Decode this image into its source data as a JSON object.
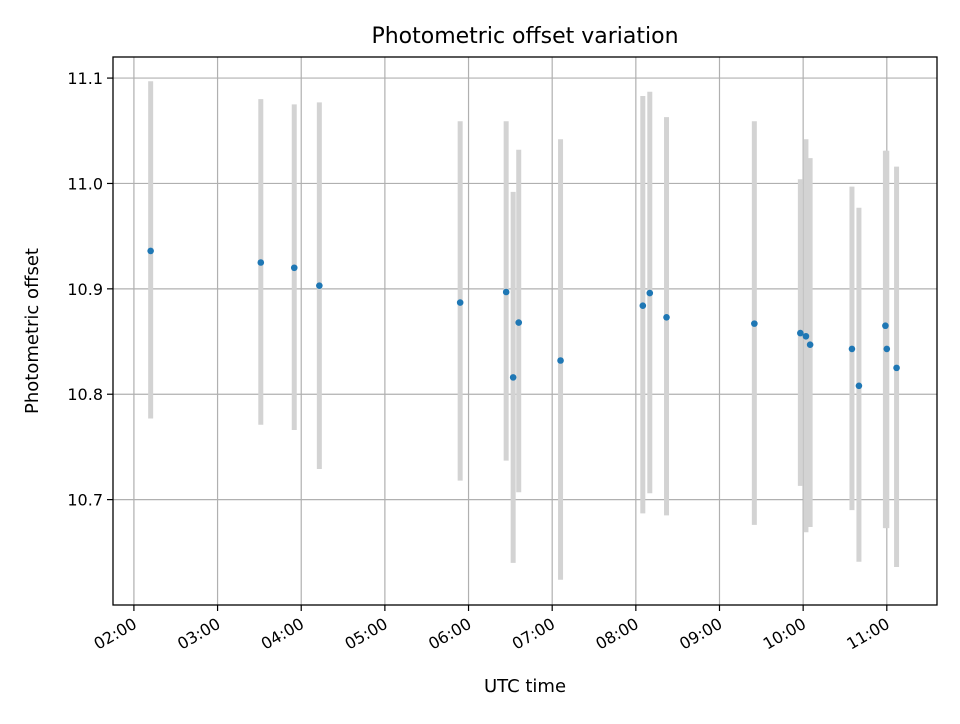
{
  "chart_data": {
    "type": "scatter",
    "title": "Photometric offset variation",
    "xlabel": "UTC time",
    "ylabel": "Photometric offset",
    "x_ticks": [
      "02:00",
      "03:00",
      "04:00",
      "05:00",
      "06:00",
      "07:00",
      "08:00",
      "09:00",
      "10:00",
      "11:00"
    ],
    "y_ticks": [
      "10.7",
      "10.8",
      "10.9",
      "11.0",
      "11.1"
    ],
    "xlim": [
      "01:45",
      "11:36"
    ],
    "ylim": [
      10.6,
      11.12
    ],
    "grid": true,
    "marker_color": "#1f77b4",
    "errorbar_color": "#d3d3d3",
    "points": [
      {
        "x": "02:12",
        "y": 10.936,
        "ylow": 10.777,
        "yhigh": 11.097
      },
      {
        "x": "03:31",
        "y": 10.925,
        "ylow": 10.771,
        "yhigh": 11.08
      },
      {
        "x": "03:55",
        "y": 10.92,
        "ylow": 10.766,
        "yhigh": 11.075
      },
      {
        "x": "04:13",
        "y": 10.903,
        "ylow": 10.729,
        "yhigh": 11.077
      },
      {
        "x": "05:54",
        "y": 10.887,
        "ylow": 10.718,
        "yhigh": 11.059
      },
      {
        "x": "06:27",
        "y": 10.897,
        "ylow": 10.737,
        "yhigh": 11.059
      },
      {
        "x": "06:32",
        "y": 10.816,
        "ylow": 10.64,
        "yhigh": 10.992
      },
      {
        "x": "06:36",
        "y": 10.868,
        "ylow": 10.707,
        "yhigh": 11.032
      },
      {
        "x": "07:06",
        "y": 10.832,
        "ylow": 10.624,
        "yhigh": 11.042
      },
      {
        "x": "08:05",
        "y": 10.884,
        "ylow": 10.687,
        "yhigh": 11.083
      },
      {
        "x": "08:10",
        "y": 10.896,
        "ylow": 10.706,
        "yhigh": 11.087
      },
      {
        "x": "08:22",
        "y": 10.873,
        "ylow": 10.685,
        "yhigh": 11.063
      },
      {
        "x": "09:25",
        "y": 10.867,
        "ylow": 10.676,
        "yhigh": 11.059
      },
      {
        "x": "09:58",
        "y": 10.858,
        "ylow": 10.713,
        "yhigh": 11.004
      },
      {
        "x": "10:02",
        "y": 10.855,
        "ylow": 10.669,
        "yhigh": 11.042
      },
      {
        "x": "10:05",
        "y": 10.847,
        "ylow": 10.674,
        "yhigh": 11.024
      },
      {
        "x": "10:35",
        "y": 10.843,
        "ylow": 10.69,
        "yhigh": 10.997
      },
      {
        "x": "10:40",
        "y": 10.808,
        "ylow": 10.641,
        "yhigh": 10.977
      },
      {
        "x": "10:59",
        "y": 10.865,
        "ylow": 10.673,
        "yhigh": 11.031
      },
      {
        "x": "11:00",
        "y": 10.843,
        "ylow": 10.673,
        "yhigh": 11.031
      },
      {
        "x": "11:07",
        "y": 10.825,
        "ylow": 10.636,
        "yhigh": 11.016
      }
    ]
  }
}
